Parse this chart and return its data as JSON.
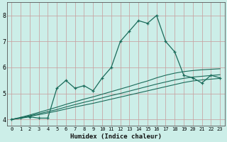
{
  "xlabel": "Humidex (Indice chaleur)",
  "bg_color": "#cceee8",
  "grid_color": "#c8a0a0",
  "line_color": "#1a6b5a",
  "xlim": [
    -0.5,
    23.5
  ],
  "ylim": [
    3.75,
    8.5
  ],
  "xticks": [
    0,
    1,
    2,
    3,
    4,
    5,
    6,
    7,
    8,
    9,
    10,
    11,
    12,
    13,
    14,
    15,
    16,
    17,
    18,
    19,
    20,
    21,
    22,
    23
  ],
  "yticks": [
    4,
    5,
    6,
    7,
    8
  ],
  "series1_x": [
    0,
    1,
    2,
    3,
    4,
    5,
    6,
    7,
    8,
    9,
    10,
    11,
    12,
    13,
    14,
    15,
    16,
    17,
    18,
    19,
    20,
    21,
    22,
    23
  ],
  "series1_y": [
    4.0,
    4.05,
    4.1,
    4.05,
    4.05,
    5.2,
    5.5,
    5.2,
    5.3,
    5.1,
    5.6,
    6.0,
    7.0,
    7.4,
    7.8,
    7.7,
    8.0,
    7.0,
    6.6,
    5.7,
    5.6,
    5.4,
    5.7,
    5.6
  ],
  "series2_x": [
    0,
    1,
    2,
    3,
    4,
    5,
    6,
    7,
    8,
    9,
    10,
    11,
    12,
    13,
    14,
    15,
    16,
    17,
    18,
    19,
    20,
    21,
    22,
    23
  ],
  "series2_y": [
    4.0,
    4.05,
    4.12,
    4.18,
    4.25,
    4.32,
    4.4,
    4.48,
    4.55,
    4.62,
    4.7,
    4.78,
    4.86,
    4.94,
    5.02,
    5.1,
    5.18,
    5.26,
    5.34,
    5.42,
    5.48,
    5.52,
    5.55,
    5.58
  ],
  "series3_x": [
    0,
    1,
    2,
    3,
    4,
    5,
    6,
    7,
    8,
    9,
    10,
    11,
    12,
    13,
    14,
    15,
    16,
    17,
    18,
    19,
    20,
    21,
    22,
    23
  ],
  "series3_y": [
    4.0,
    4.06,
    4.14,
    4.22,
    4.3,
    4.38,
    4.48,
    4.57,
    4.66,
    4.74,
    4.83,
    4.92,
    5.0,
    5.09,
    5.18,
    5.27,
    5.36,
    5.44,
    5.52,
    5.58,
    5.63,
    5.66,
    5.69,
    5.72
  ],
  "series4_x": [
    0,
    1,
    2,
    3,
    4,
    5,
    6,
    7,
    8,
    9,
    10,
    11,
    12,
    13,
    14,
    15,
    16,
    17,
    18,
    19,
    20,
    21,
    22,
    23
  ],
  "series4_y": [
    4.0,
    4.08,
    4.17,
    4.27,
    4.37,
    4.47,
    4.58,
    4.68,
    4.78,
    4.87,
    4.97,
    5.07,
    5.17,
    5.27,
    5.38,
    5.48,
    5.6,
    5.7,
    5.78,
    5.84,
    5.88,
    5.91,
    5.93,
    5.95
  ]
}
